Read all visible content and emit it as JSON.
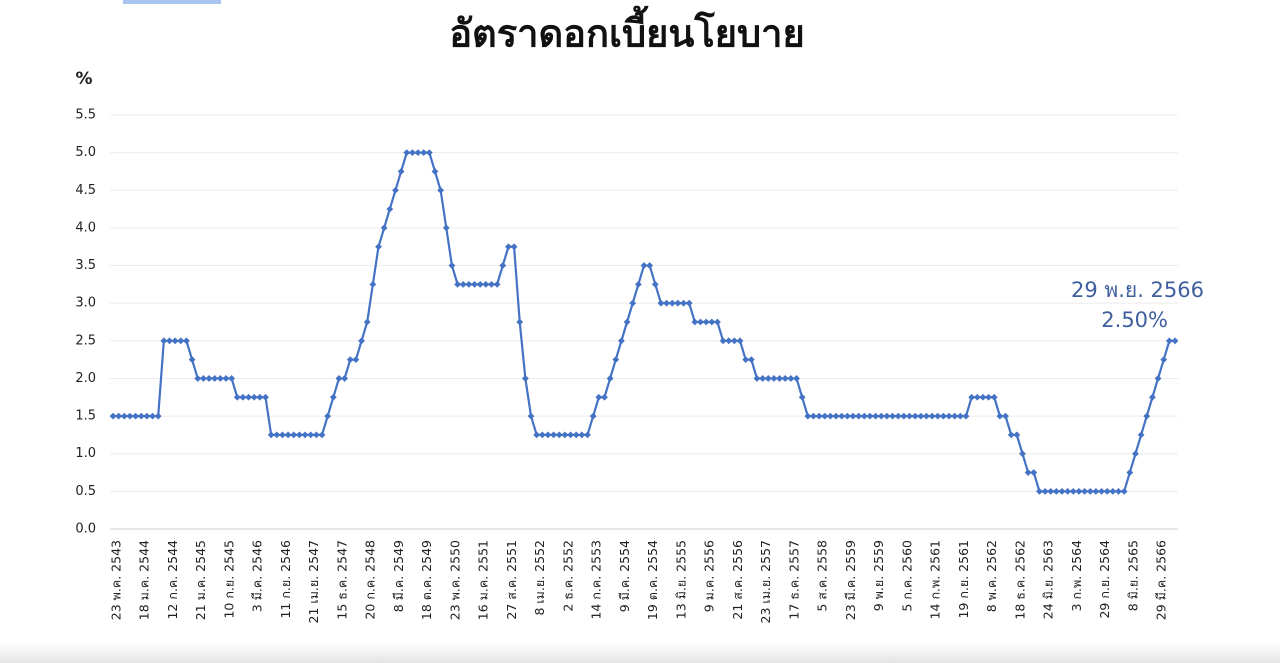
{
  "chart_data": {
    "type": "line",
    "title": "อัตราดอกเบี้ยนโยบาย",
    "y_label": "%",
    "annotations": [
      "29 พ.ย. 2566",
      "2.50%"
    ],
    "categories": [
      "23 พ.ค. 2543",
      null,
      null,
      null,
      null,
      "18 ม.ค. 2544",
      null,
      null,
      null,
      null,
      "12 ก.ค. 2544",
      null,
      null,
      null,
      null,
      "21 ม.ค. 2545",
      null,
      null,
      null,
      null,
      "10 ก.ย. 2545",
      null,
      null,
      null,
      null,
      "3 มี.ค. 2546",
      null,
      null,
      null,
      null,
      "11 ก.ย. 2546",
      null,
      null,
      null,
      null,
      "21 เม.ย. 2547",
      null,
      null,
      null,
      null,
      "15 ธ.ค. 2547",
      null,
      null,
      null,
      null,
      "20 ก.ค. 2548",
      null,
      null,
      null,
      null,
      "8 มี.ค. 2549",
      null,
      null,
      null,
      null,
      "18 ต.ค. 2549",
      null,
      null,
      null,
      null,
      "23 พ.ค. 2550",
      null,
      null,
      null,
      null,
      "16 ม.ค. 2551",
      null,
      null,
      null,
      null,
      "27 ส.ค. 2551",
      null,
      null,
      null,
      null,
      "8 เม.ย. 2552",
      null,
      null,
      null,
      null,
      "2 ธ.ค. 2552",
      null,
      null,
      null,
      null,
      "14 ก.ค. 2553",
      null,
      null,
      null,
      null,
      "9 มี.ค. 2554",
      null,
      null,
      null,
      null,
      "19 ต.ค. 2554",
      null,
      null,
      null,
      null,
      "13 มิ.ย. 2555",
      null,
      null,
      null,
      null,
      "9 ม.ค. 2556",
      null,
      null,
      null,
      null,
      "21 ส.ค. 2556",
      null,
      null,
      null,
      null,
      "23 เม.ย. 2557",
      null,
      null,
      null,
      null,
      "17 ธ.ค. 2557",
      null,
      null,
      null,
      null,
      "5 ส.ค. 2558",
      null,
      null,
      null,
      null,
      "23 มี.ค. 2559",
      null,
      null,
      null,
      null,
      "9 พ.ย. 2559",
      null,
      null,
      null,
      null,
      "5 ก.ค. 2560",
      null,
      null,
      null,
      null,
      "14 ก.พ. 2561",
      null,
      null,
      null,
      null,
      "19 ก.ย. 2561",
      null,
      null,
      null,
      null,
      "8 พ.ค. 2562",
      null,
      null,
      null,
      null,
      "18 ธ.ค. 2562",
      null,
      null,
      null,
      null,
      "24 มิ.ย. 2563",
      null,
      null,
      null,
      null,
      "3 ก.พ. 2564",
      null,
      null,
      null,
      null,
      "29 ก.ย. 2564",
      null,
      null,
      null,
      null,
      "8 มิ.ย. 2565",
      null,
      null,
      null,
      null,
      "29 มี.ค. 2566",
      null,
      null,
      null
    ],
    "series": [
      {
        "color": "#4472c4",
        "values": [
          1.5,
          1.5,
          1.5,
          1.5,
          1.5,
          1.5,
          1.5,
          1.5,
          1.5,
          2.5,
          2.5,
          2.5,
          2.5,
          2.5,
          2.25,
          2,
          2,
          2,
          2,
          2,
          2,
          2,
          1.75,
          1.75,
          1.75,
          1.75,
          1.75,
          1.75,
          1.25,
          1.25,
          1.25,
          1.25,
          1.25,
          1.25,
          1.25,
          1.25,
          1.25,
          1.25,
          1.5,
          1.75,
          2,
          2,
          2.25,
          2.25,
          2.5,
          2.75,
          3.25,
          3.75,
          4,
          4.25,
          4.5,
          4.75,
          5,
          5,
          5,
          5,
          5,
          4.75,
          4.5,
          4,
          3.5,
          3.25,
          3.25,
          3.25,
          3.25,
          3.25,
          3.25,
          3.25,
          3.25,
          3.5,
          3.75,
          3.75,
          2.75,
          2,
          1.5,
          1.25,
          1.25,
          1.25,
          1.25,
          1.25,
          1.25,
          1.25,
          1.25,
          1.25,
          1.25,
          1.5,
          1.75,
          1.75,
          2,
          2.25,
          2.5,
          2.75,
          3,
          3.25,
          3.5,
          3.5,
          3.25,
          3,
          3,
          3,
          3,
          3,
          3,
          2.75,
          2.75,
          2.75,
          2.75,
          2.75,
          2.5,
          2.5,
          2.5,
          2.5,
          2.25,
          2.25,
          2,
          2,
          2,
          2,
          2,
          2,
          2,
          2,
          1.75,
          1.5,
          1.5,
          1.5,
          1.5,
          1.5,
          1.5,
          1.5,
          1.5,
          1.5,
          1.5,
          1.5,
          1.5,
          1.5,
          1.5,
          1.5,
          1.5,
          1.5,
          1.5,
          1.5,
          1.5,
          1.5,
          1.5,
          1.5,
          1.5,
          1.5,
          1.5,
          1.5,
          1.5,
          1.5,
          1.75,
          1.75,
          1.75,
          1.75,
          1.75,
          1.5,
          1.5,
          1.25,
          1.25,
          1,
          0.75,
          0.75,
          0.5,
          0.5,
          0.5,
          0.5,
          0.5,
          0.5,
          0.5,
          0.5,
          0.5,
          0.5,
          0.5,
          0.5,
          0.5,
          0.5,
          0.5,
          0.5,
          0.75,
          1,
          1.25,
          1.5,
          1.75,
          2,
          2.25,
          2.5,
          2.5
        ]
      }
    ],
    "ylim": [
      0,
      5.5
    ],
    "yticks": [
      {
        "value": 0,
        "label": "0.0"
      },
      0.5,
      {
        "value": 1,
        "label": "1.0"
      },
      1.5,
      {
        "value": 2,
        "label": "2.0"
      },
      2.5,
      {
        "value": 3,
        "label": "3.0"
      },
      3.5,
      {
        "value": 4,
        "label": "4.0"
      },
      4.5,
      {
        "value": 5,
        "label": "5.0"
      },
      5.5
    ],
    "grid": true
  }
}
